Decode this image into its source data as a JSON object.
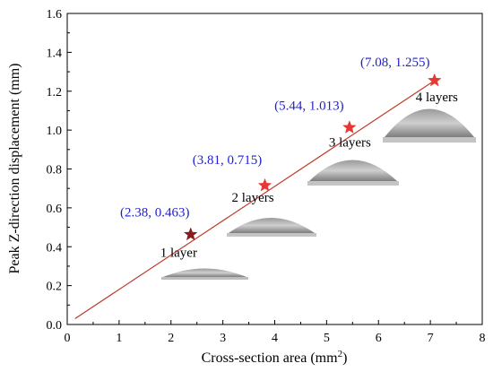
{
  "chart_data": {
    "type": "line",
    "xlabel": "Cross-section area (mm",
    "xlabel_sup": "2",
    "xlabel_close": ")",
    "ylabel": "Peak Z-direction displacement (mm)",
    "xlim": [
      0,
      8
    ],
    "ylim": [
      0.0,
      1.6
    ],
    "x_ticks": [
      "0",
      "1",
      "2",
      "3",
      "4",
      "5",
      "6",
      "7",
      "8"
    ],
    "y_ticks": [
      "0.0",
      "0.2",
      "0.4",
      "0.6",
      "0.8",
      "1.0",
      "1.2",
      "1.4",
      "1.6"
    ],
    "grid": false,
    "fit_line": {
      "x": [
        0.15,
        7.08
      ],
      "y": [
        0.03,
        1.255
      ],
      "color": "#c0392b"
    },
    "series": [
      {
        "x": [
          2.38,
          3.81,
          5.44,
          7.08
        ],
        "y": [
          0.463,
          0.715,
          1.013,
          1.255
        ],
        "point_labels": [
          "(2.38, 0.463)",
          "(3.81, 0.715)",
          "(5.44, 1.013)",
          "(7.08, 1.255)"
        ],
        "layer_labels": [
          "1 layer",
          "2 layers",
          "3 layers",
          "4 layers"
        ],
        "marker": "star",
        "marker_colors": [
          "#8b1a1a",
          "#e53935",
          "#e53935",
          "#e53935"
        ]
      }
    ],
    "label_color": "#1f1fcf"
  }
}
